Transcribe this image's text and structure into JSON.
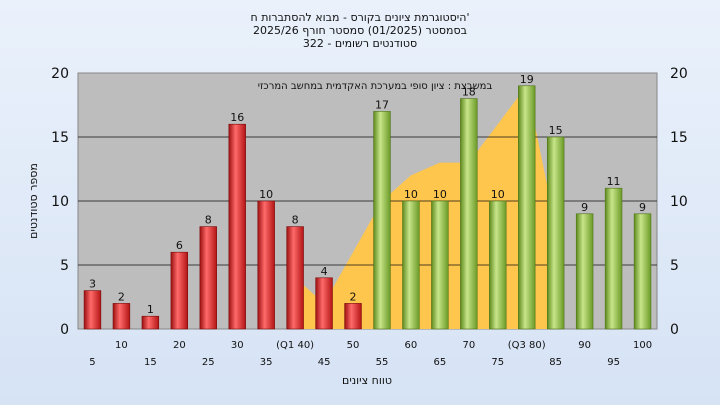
{
  "chart_data": {
    "type": "bar",
    "title_lines": [
      "היסטוגרמת ציונים בקורס - מבוא להסתברות ח'",
      "בסמסטר  (01/2025)  סמסטר חורף  2025/26",
      "סטודנטים רשומים - 322"
    ],
    "ylabel": "מספר סטודנטים",
    "xlabel": "טווח ציונים",
    "annotation": "במשבצת : ציון סופי במערכת האקדמית במחשב המרכזי",
    "ylim": [
      0,
      20
    ],
    "yticks": [
      "0",
      "5",
      "10",
      "15",
      "20"
    ],
    "categories": [
      "5",
      "10",
      "15",
      "20",
      "25",
      "30",
      "35",
      "(Q1 40)",
      "45",
      "50",
      "55",
      "60",
      "65",
      "70",
      "75",
      "(Q3 80)",
      "85",
      "90",
      "95",
      "100"
    ],
    "values": [
      3,
      2,
      1,
      6,
      8,
      16,
      10,
      8,
      4,
      2,
      17,
      10,
      10,
      18,
      10,
      19,
      15,
      9,
      11,
      9
    ],
    "area_values": [
      null,
      null,
      null,
      null,
      null,
      null,
      null,
      4,
      2,
      6,
      10,
      12,
      13,
      13,
      16,
      19,
      8,
      null,
      null,
      null
    ],
    "colors": {
      "fail_bar": "#e02a2a",
      "pass_bar": "#8fbf3e",
      "area": "#ffc64d",
      "plot_bg": "#bdbdbd",
      "grid": "#111111"
    },
    "pass_threshold_index": 10,
    "grid": true,
    "legend": "none"
  }
}
